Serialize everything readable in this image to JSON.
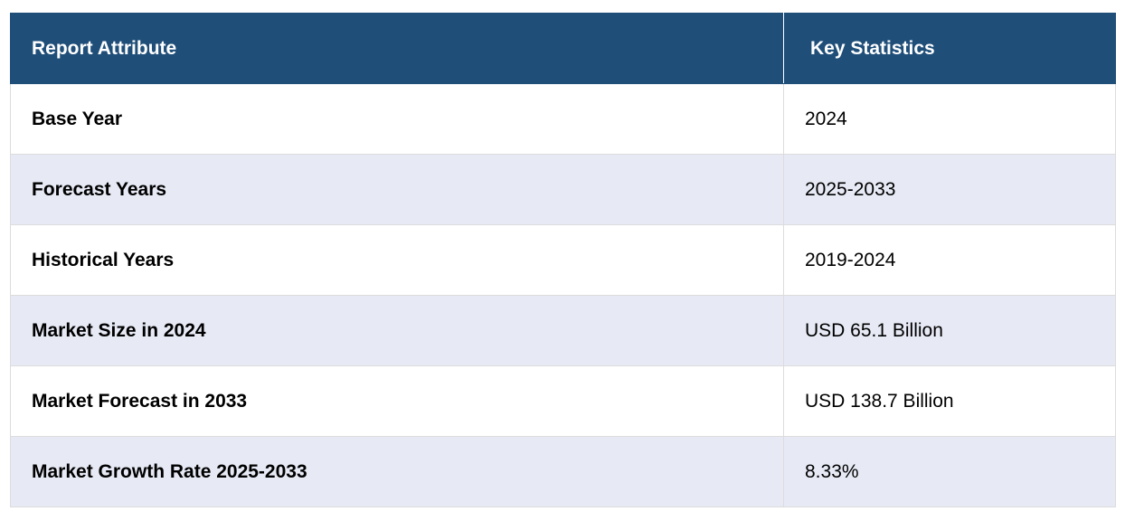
{
  "table": {
    "headers": [
      "Report Attribute",
      "Key Statistics"
    ],
    "rows": [
      {
        "attribute": "Base Year",
        "value": "2024"
      },
      {
        "attribute": "Forecast Years",
        "value": "2025-2033"
      },
      {
        "attribute": "Historical Years",
        "value": "2019-2024"
      },
      {
        "attribute": "Market Size in 2024",
        "value": "USD 65.1 Billion"
      },
      {
        "attribute": "Market Forecast in 2033",
        "value": "USD 138.7 Billion"
      },
      {
        "attribute": "Market Growth Rate 2025-2033",
        "value": "8.33%"
      }
    ]
  },
  "colors": {
    "header_bg": "#1f4e79",
    "stripe_bg": "#e7eaf5"
  }
}
